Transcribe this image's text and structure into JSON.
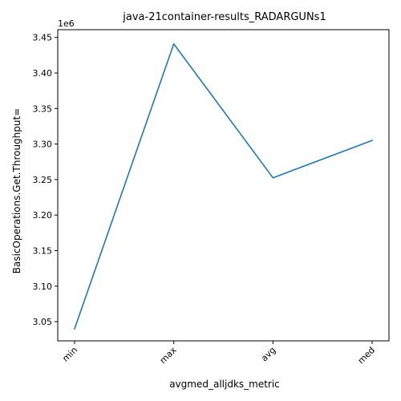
{
  "chart_data": {
    "type": "line",
    "title": "java-21container-results_RADARGUNs1",
    "xlabel": "avgmed_alljdks_metric",
    "ylabel": "BasicOperations.Get.Throughput=",
    "y_offset_label": "1e6",
    "categories": [
      "min",
      "max",
      "avg",
      "med"
    ],
    "series": [
      {
        "values": [
          3040000,
          3441000,
          3252500,
          3305000
        ],
        "color": "#1f77b4"
      }
    ],
    "ylim": [
      3023000,
      3461000
    ],
    "y_ticks": [
      3050000,
      3100000,
      3150000,
      3200000,
      3250000,
      3300000,
      3350000,
      3400000,
      3450000
    ],
    "y_tick_labels": [
      "3.05",
      "3.10",
      "3.15",
      "3.20",
      "3.25",
      "3.30",
      "3.35",
      "3.40",
      "3.45"
    ],
    "grid": false,
    "legend": "none"
  }
}
